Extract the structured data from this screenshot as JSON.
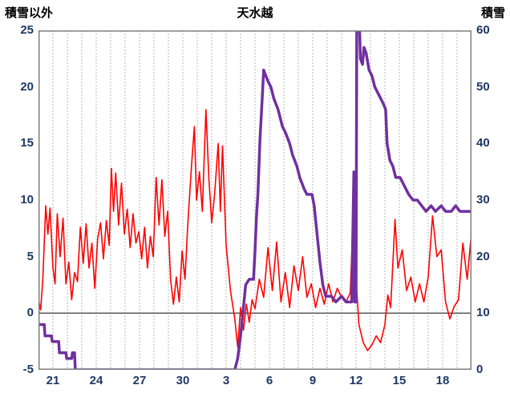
{
  "header": {
    "left_axis_title": "積雪以外",
    "title": "天水越",
    "right_axis_title": "積雪"
  },
  "chart_data": {
    "type": "line",
    "title": "天水越",
    "left_axis": {
      "label": "積雪以外",
      "min": -5,
      "max": 25,
      "ticks": [
        25,
        20,
        15,
        10,
        5,
        0,
        -5
      ]
    },
    "right_axis": {
      "label": "積雪",
      "min": 0,
      "max": 60,
      "ticks": [
        60,
        50,
        40,
        30,
        20,
        10,
        0
      ]
    },
    "x_range": [
      0,
      30
    ],
    "x_ticks": [
      {
        "pos": 1,
        "label": "21"
      },
      {
        "pos": 4,
        "label": "24"
      },
      {
        "pos": 7,
        "label": "27"
      },
      {
        "pos": 10,
        "label": "30"
      },
      {
        "pos": 13,
        "label": "3"
      },
      {
        "pos": 16,
        "label": "6"
      },
      {
        "pos": 19,
        "label": "9"
      },
      {
        "pos": 22,
        "label": "12"
      },
      {
        "pos": 25,
        "label": "15"
      },
      {
        "pos": 28,
        "label": "18"
      }
    ],
    "grid": {
      "x_step": 1,
      "color": "#b7b7b7",
      "dash": "2,2",
      "horizontal": false
    },
    "zero_line_color": "#595959",
    "border_color": "#7f7f7f",
    "tick_label_color": "#1f3864",
    "legend": "none",
    "series": [
      {
        "name": "積雪以外",
        "axis": "left",
        "color": "#ff0000",
        "width": 1.6,
        "points": [
          [
            0.0,
            1.2
          ],
          [
            0.15,
            0.3
          ],
          [
            0.3,
            3.0
          ],
          [
            0.5,
            9.5
          ],
          [
            0.65,
            7.0
          ],
          [
            0.8,
            9.3
          ],
          [
            1.0,
            4.0
          ],
          [
            1.15,
            2.6
          ],
          [
            1.3,
            8.8
          ],
          [
            1.5,
            5.0
          ],
          [
            1.7,
            8.4
          ],
          [
            1.9,
            2.6
          ],
          [
            2.1,
            4.5
          ],
          [
            2.3,
            1.2
          ],
          [
            2.5,
            3.6
          ],
          [
            2.7,
            2.8
          ],
          [
            2.9,
            7.6
          ],
          [
            3.1,
            4.4
          ],
          [
            3.3,
            7.9
          ],
          [
            3.5,
            4.0
          ],
          [
            3.7,
            6.2
          ],
          [
            3.9,
            2.2
          ],
          [
            4.1,
            6.6
          ],
          [
            4.3,
            8.0
          ],
          [
            4.5,
            4.8
          ],
          [
            4.7,
            8.2
          ],
          [
            4.9,
            6.0
          ],
          [
            5.05,
            12.8
          ],
          [
            5.2,
            9.0
          ],
          [
            5.35,
            12.4
          ],
          [
            5.55,
            7.8
          ],
          [
            5.75,
            11.5
          ],
          [
            5.95,
            7.0
          ],
          [
            6.15,
            9.2
          ],
          [
            6.35,
            5.8
          ],
          [
            6.55,
            8.8
          ],
          [
            6.75,
            6.2
          ],
          [
            6.95,
            7.2
          ],
          [
            7.15,
            4.8
          ],
          [
            7.35,
            7.6
          ],
          [
            7.55,
            4.0
          ],
          [
            7.75,
            6.8
          ],
          [
            7.95,
            5.0
          ],
          [
            8.15,
            12.0
          ],
          [
            8.35,
            7.8
          ],
          [
            8.55,
            11.8
          ],
          [
            8.75,
            6.8
          ],
          [
            8.95,
            9.0
          ],
          [
            9.15,
            3.0
          ],
          [
            9.35,
            0.8
          ],
          [
            9.55,
            3.2
          ],
          [
            9.75,
            1.0
          ],
          [
            9.95,
            5.5
          ],
          [
            10.15,
            3.0
          ],
          [
            10.35,
            8.0
          ],
          [
            10.6,
            13.0
          ],
          [
            10.8,
            16.5
          ],
          [
            10.95,
            10.0
          ],
          [
            11.15,
            12.5
          ],
          [
            11.35,
            9.0
          ],
          [
            11.6,
            18.0
          ],
          [
            11.8,
            12.0
          ],
          [
            12.0,
            8.0
          ],
          [
            12.2,
            10.5
          ],
          [
            12.45,
            15.0
          ],
          [
            12.6,
            9.0
          ],
          [
            12.75,
            14.8
          ],
          [
            13.0,
            6.0
          ],
          [
            13.3,
            2.0
          ],
          [
            13.6,
            -0.5
          ],
          [
            13.8,
            -3.0
          ],
          [
            14.0,
            0.5
          ],
          [
            14.2,
            -1.5
          ],
          [
            14.4,
            0.8
          ],
          [
            14.6,
            -0.8
          ],
          [
            14.8,
            1.2
          ],
          [
            15.0,
            0.4
          ],
          [
            15.3,
            3.0
          ],
          [
            15.6,
            1.4
          ],
          [
            15.9,
            5.8
          ],
          [
            16.2,
            2.0
          ],
          [
            16.5,
            6.3
          ],
          [
            16.8,
            1.0
          ],
          [
            17.1,
            3.6
          ],
          [
            17.4,
            0.5
          ],
          [
            17.7,
            4.2
          ],
          [
            18.0,
            2.0
          ],
          [
            18.3,
            5.0
          ],
          [
            18.6,
            1.4
          ],
          [
            18.9,
            2.6
          ],
          [
            19.2,
            0.5
          ],
          [
            19.5,
            2.2
          ],
          [
            19.8,
            0.8
          ],
          [
            20.1,
            2.6
          ],
          [
            20.4,
            1.0
          ],
          [
            20.7,
            2.2
          ],
          [
            21.0,
            1.4
          ],
          [
            21.3,
            1.0
          ],
          [
            21.6,
            1.8
          ],
          [
            21.9,
            11.8
          ],
          [
            22.05,
            2.0
          ],
          [
            22.2,
            -1.0
          ],
          [
            22.5,
            -2.6
          ],
          [
            22.8,
            -3.3
          ],
          [
            23.1,
            -2.8
          ],
          [
            23.4,
            -2.0
          ],
          [
            23.7,
            -2.6
          ],
          [
            24.0,
            -1.0
          ],
          [
            24.2,
            1.6
          ],
          [
            24.4,
            0.5
          ],
          [
            24.7,
            8.3
          ],
          [
            24.9,
            4.0
          ],
          [
            25.2,
            5.6
          ],
          [
            25.5,
            2.0
          ],
          [
            25.8,
            3.2
          ],
          [
            26.1,
            1.0
          ],
          [
            26.4,
            2.6
          ],
          [
            26.7,
            1.0
          ],
          [
            27.0,
            3.2
          ],
          [
            27.3,
            8.6
          ],
          [
            27.6,
            5.0
          ],
          [
            27.9,
            5.6
          ],
          [
            28.2,
            1.0
          ],
          [
            28.5,
            -0.5
          ],
          [
            28.8,
            0.6
          ],
          [
            29.1,
            1.2
          ],
          [
            29.4,
            6.2
          ],
          [
            29.7,
            3.0
          ],
          [
            29.95,
            6.5
          ]
        ]
      },
      {
        "name": "積雪",
        "axis": "right",
        "color": "#7030a0",
        "width": 3.5,
        "points": [
          [
            0.0,
            8
          ],
          [
            0.4,
            8
          ],
          [
            0.45,
            6
          ],
          [
            0.9,
            6
          ],
          [
            0.95,
            5
          ],
          [
            1.4,
            5
          ],
          [
            1.45,
            3
          ],
          [
            1.9,
            3
          ],
          [
            1.95,
            2
          ],
          [
            2.3,
            2
          ],
          [
            2.35,
            3
          ],
          [
            2.5,
            3
          ],
          [
            2.55,
            0
          ],
          [
            13.6,
            0
          ],
          [
            13.8,
            2
          ],
          [
            14.0,
            6
          ],
          [
            14.2,
            11
          ],
          [
            14.35,
            15
          ],
          [
            14.6,
            16
          ],
          [
            14.9,
            16
          ],
          [
            15.0,
            21
          ],
          [
            15.1,
            27
          ],
          [
            15.2,
            31
          ],
          [
            15.35,
            41
          ],
          [
            15.5,
            48
          ],
          [
            15.6,
            53
          ],
          [
            15.75,
            52
          ],
          [
            15.9,
            51
          ],
          [
            16.1,
            50
          ],
          [
            16.3,
            48
          ],
          [
            16.6,
            46
          ],
          [
            16.9,
            43
          ],
          [
            17.1,
            42
          ],
          [
            17.4,
            40
          ],
          [
            17.6,
            38
          ],
          [
            17.9,
            36
          ],
          [
            18.1,
            34
          ],
          [
            18.4,
            32
          ],
          [
            18.6,
            31
          ],
          [
            18.95,
            31
          ],
          [
            19.1,
            29
          ],
          [
            19.3,
            24
          ],
          [
            19.5,
            19
          ],
          [
            19.7,
            15
          ],
          [
            19.9,
            13
          ],
          [
            20.3,
            13
          ],
          [
            20.6,
            12
          ],
          [
            21.0,
            13
          ],
          [
            21.3,
            12
          ],
          [
            21.7,
            12
          ],
          [
            21.85,
            35
          ],
          [
            21.9,
            12
          ],
          [
            22.0,
            12
          ],
          [
            22.05,
            60
          ],
          [
            22.25,
            60
          ],
          [
            22.3,
            55
          ],
          [
            22.45,
            54
          ],
          [
            22.55,
            57
          ],
          [
            22.7,
            56
          ],
          [
            22.9,
            53
          ],
          [
            23.1,
            52
          ],
          [
            23.3,
            50
          ],
          [
            23.5,
            49
          ],
          [
            23.7,
            48
          ],
          [
            23.9,
            47
          ],
          [
            24.05,
            46
          ],
          [
            24.15,
            40
          ],
          [
            24.35,
            37
          ],
          [
            24.55,
            36
          ],
          [
            24.75,
            34
          ],
          [
            25.05,
            34
          ],
          [
            25.25,
            33
          ],
          [
            25.45,
            32
          ],
          [
            25.65,
            31
          ],
          [
            25.95,
            30
          ],
          [
            26.25,
            30
          ],
          [
            26.55,
            29
          ],
          [
            26.85,
            28
          ],
          [
            27.2,
            29
          ],
          [
            27.5,
            28
          ],
          [
            27.9,
            29
          ],
          [
            28.2,
            28
          ],
          [
            28.6,
            28
          ],
          [
            28.9,
            29
          ],
          [
            29.2,
            28
          ],
          [
            29.6,
            28
          ],
          [
            29.95,
            28
          ]
        ]
      }
    ]
  }
}
